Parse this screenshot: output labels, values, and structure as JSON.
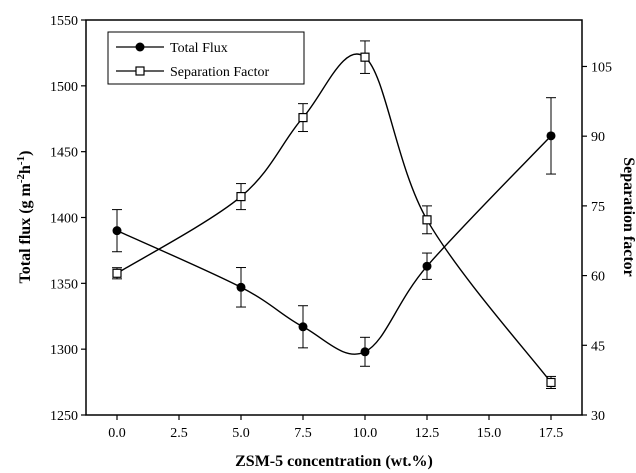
{
  "chart_data": {
    "type": "line",
    "x": [
      0.0,
      5.0,
      7.5,
      10.0,
      12.5,
      17.5
    ],
    "xlabel": "ZSM-5 concentration (wt.%)",
    "xlim": [
      -1.25,
      18.75
    ],
    "xticks": [
      "0.0",
      "2.5",
      "5.0",
      "7.5",
      "10.0",
      "12.5",
      "15.0",
      "17.5"
    ],
    "ylabel_parts": [
      "Total flux (g m",
      "-2",
      "h",
      "-1",
      ")"
    ],
    "ylim": [
      1250,
      1550
    ],
    "yticks": [
      "1250",
      "1300",
      "1350",
      "1400",
      "1450",
      "1500",
      "1550"
    ],
    "y2label": "Separation factor",
    "y2lim": [
      30,
      115
    ],
    "y2ticks": [
      "30",
      "45",
      "60",
      "75",
      "90",
      "105"
    ],
    "series": [
      {
        "name": "Total Flux",
        "axis": "left",
        "marker": "filled-circle",
        "values": [
          1390,
          1347,
          1317,
          1298,
          1363,
          1462
        ],
        "errors": [
          16,
          15,
          16,
          11,
          10,
          29
        ]
      },
      {
        "name": "Separation Factor",
        "axis": "right",
        "marker": "open-square",
        "values": [
          60.5,
          77,
          94,
          107,
          72,
          37
        ],
        "errors": [
          1.2,
          2.8,
          3.0,
          3.5,
          3.0,
          1.3
        ]
      }
    ],
    "grid": false,
    "legend_position": "top-left"
  }
}
